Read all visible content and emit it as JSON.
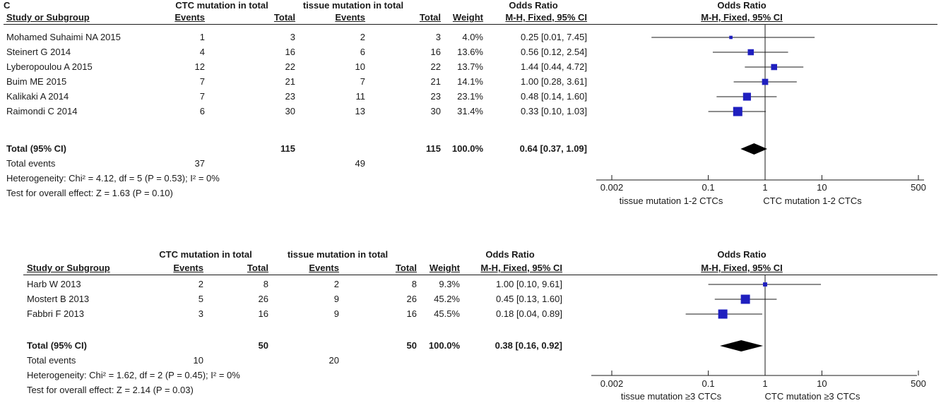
{
  "figure_label": "C",
  "plots": [
    {
      "headers": {
        "ctc_group": "CTC mutation in total",
        "tissue_group": "tissue mutation in total",
        "odds_ratio": "Odds Ratio",
        "study": "Study or Subgroup",
        "events": "Events",
        "total": "Total",
        "weight": "Weight",
        "method": "M-H, Fixed, 95% CI"
      },
      "studies": [
        {
          "name": "Mohamed Suhaimi NA 2015",
          "ctc_events": "1",
          "ctc_total": "3",
          "tissue_events": "2",
          "tissue_total": "3",
          "weight": "4.0%",
          "ci_text": "0.25 [0.01, 7.45]"
        },
        {
          "name": "Steinert G 2014",
          "ctc_events": "4",
          "ctc_total": "16",
          "tissue_events": "6",
          "tissue_total": "16",
          "weight": "13.6%",
          "ci_text": "0.56 [0.12, 2.54]"
        },
        {
          "name": "Lyberopoulou A 2015",
          "ctc_events": "12",
          "ctc_total": "22",
          "tissue_events": "10",
          "tissue_total": "22",
          "weight": "13.7%",
          "ci_text": "1.44 [0.44, 4.72]"
        },
        {
          "name": "Buim ME 2015",
          "ctc_events": "7",
          "ctc_total": "21",
          "tissue_events": "7",
          "tissue_total": "21",
          "weight": "14.1%",
          "ci_text": "1.00 [0.28, 3.61]"
        },
        {
          "name": "Kalikaki A 2014",
          "ctc_events": "7",
          "ctc_total": "23",
          "tissue_events": "11",
          "tissue_total": "23",
          "weight": "23.1%",
          "ci_text": "0.48 [0.14, 1.60]"
        },
        {
          "name": "Raimondi C 2014",
          "ctc_events": "6",
          "ctc_total": "30",
          "tissue_events": "13",
          "tissue_total": "30",
          "weight": "31.4%",
          "ci_text": "0.33 [0.10, 1.03]"
        }
      ],
      "total": {
        "label": "Total (95% CI)",
        "ctc_total": "115",
        "tissue_total": "115",
        "weight": "100.0%",
        "ci_text": "0.64 [0.37, 1.09]"
      },
      "total_events": {
        "label": "Total events",
        "ctc": "37",
        "tissue": "49"
      },
      "heterogeneity": "Heterogeneity: Chi² = 4.12, df = 5 (P = 0.53); I² = 0%",
      "overall_effect": "Test for overall effect: Z = 1.63 (P = 0.10)",
      "plot_title": "Odds Ratio",
      "plot_method": "M-H, Fixed, 95% CI",
      "axis_ticks": [
        "0.002",
        "0.1",
        "1",
        "10",
        "500"
      ],
      "favours_left": "tissue mutation 1-2 CTCs",
      "favours_right": "CTC mutation 1-2 CTCs"
    },
    {
      "headers": {
        "ctc_group": "CTC mutation in total",
        "tissue_group": "tissue mutation in total",
        "odds_ratio": "Odds Ratio",
        "study": "Study or Subgroup",
        "events": "Events",
        "total": "Total",
        "weight": "Weight",
        "method": "M-H, Fixed, 95% CI"
      },
      "studies": [
        {
          "name": "Harb W 2013",
          "ctc_events": "2",
          "ctc_total": "8",
          "tissue_events": "2",
          "tissue_total": "8",
          "weight": "9.3%",
          "ci_text": "1.00 [0.10, 9.61]"
        },
        {
          "name": "Mostert B 2013",
          "ctc_events": "5",
          "ctc_total": "26",
          "tissue_events": "9",
          "tissue_total": "26",
          "weight": "45.2%",
          "ci_text": "0.45 [0.13, 1.60]"
        },
        {
          "name": "Fabbri F 2013",
          "ctc_events": "3",
          "ctc_total": "16",
          "tissue_events": "9",
          "tissue_total": "16",
          "weight": "45.5%",
          "ci_text": "0.18 [0.04, 0.89]"
        }
      ],
      "total": {
        "label": "Total (95% CI)",
        "ctc_total": "50",
        "tissue_total": "50",
        "weight": "100.0%",
        "ci_text": "0.38 [0.16, 0.92]"
      },
      "total_events": {
        "label": "Total events",
        "ctc": "10",
        "tissue": "20"
      },
      "heterogeneity": "Heterogeneity: Chi² = 1.62, df = 2 (P = 0.45); I² = 0%",
      "overall_effect": "Test for overall effect: Z = 2.14 (P = 0.03)",
      "plot_title": "Odds Ratio",
      "plot_method": "M-H, Fixed, 95% CI",
      "axis_ticks": [
        "0.002",
        "0.1",
        "1",
        "10",
        "500"
      ],
      "favours_left": "tissue mutation ≥3 CTCs",
      "favours_right": "CTC mutation ≥3 CTCs"
    }
  ],
  "chart_data": [
    {
      "type": "forest",
      "scale": "log",
      "xlim": [
        0.002,
        500
      ],
      "reference_line": 1,
      "series": [
        {
          "name": "Mohamed Suhaimi NA 2015",
          "or": 0.25,
          "lower": 0.01,
          "upper": 7.45,
          "weight": 4.0
        },
        {
          "name": "Steinert G 2014",
          "or": 0.56,
          "lower": 0.12,
          "upper": 2.54,
          "weight": 13.6
        },
        {
          "name": "Lyberopoulou A 2015",
          "or": 1.44,
          "lower": 0.44,
          "upper": 4.72,
          "weight": 13.7
        },
        {
          "name": "Buim ME 2015",
          "or": 1.0,
          "lower": 0.28,
          "upper": 3.61,
          "weight": 14.1
        },
        {
          "name": "Kalikaki A 2014",
          "or": 0.48,
          "lower": 0.14,
          "upper": 1.6,
          "weight": 23.1
        },
        {
          "name": "Raimondi C 2014",
          "or": 0.33,
          "lower": 0.1,
          "upper": 1.03,
          "weight": 31.4
        }
      ],
      "pooled": {
        "or": 0.64,
        "lower": 0.37,
        "upper": 1.09
      }
    },
    {
      "type": "forest",
      "scale": "log",
      "xlim": [
        0.002,
        500
      ],
      "reference_line": 1,
      "series": [
        {
          "name": "Harb W 2013",
          "or": 1.0,
          "lower": 0.1,
          "upper": 9.61,
          "weight": 9.3
        },
        {
          "name": "Mostert B 2013",
          "or": 0.45,
          "lower": 0.13,
          "upper": 1.6,
          "weight": 45.2
        },
        {
          "name": "Fabbri F 2013",
          "or": 0.18,
          "lower": 0.04,
          "upper": 0.89,
          "weight": 45.5
        }
      ],
      "pooled": {
        "or": 0.38,
        "lower": 0.16,
        "upper": 0.92
      }
    }
  ],
  "colors": {
    "marker": "#1f1fbf",
    "diamond": "#000000",
    "text": "#1a1a1a"
  }
}
